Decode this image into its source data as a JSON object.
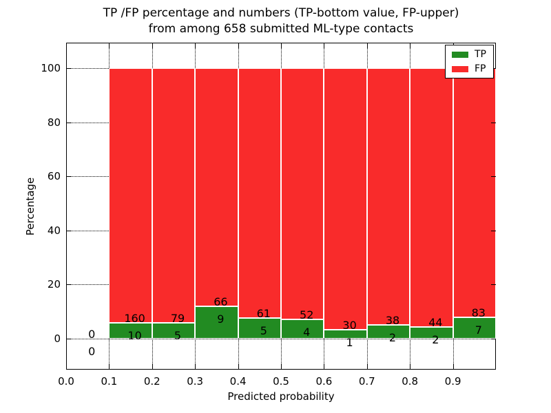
{
  "title": {
    "line1": "TP /FP percentage and numbers (TP-bottom value, FP-upper)",
    "line2": "from among 658 submitted ML-type contacts"
  },
  "axes": {
    "xlabel": "Predicted probability",
    "ylabel": "Percentage",
    "xtick_values": [
      0,
      0.1,
      0.2,
      0.3,
      0.4,
      0.5,
      0.6,
      0.7,
      0.8,
      0.9
    ],
    "xtick_labels": [
      "0.0",
      "0.1",
      "0.2",
      "0.3",
      "0.4",
      "0.5",
      "0.6",
      "0.7",
      "0.8",
      "0.9"
    ],
    "ytick_values": [
      0,
      20,
      40,
      60,
      80,
      100
    ],
    "ytick_labels": [
      "0",
      "20",
      "40",
      "60",
      "80",
      "100"
    ]
  },
  "legend": {
    "items": [
      {
        "label": "TP",
        "color": "#228b22"
      },
      {
        "label": "FP",
        "color": "#f92b2b"
      }
    ]
  },
  "colors": {
    "tp": "#228b22",
    "fp": "#f92b2b",
    "grid": "#000000",
    "background": "#ffffff"
  },
  "chart_data": {
    "type": "bar",
    "stacked": true,
    "normalization": "each probability bin stacked to 100%",
    "title": "TP /FP percentage and numbers (TP-bottom value, FP-upper) from among 658 submitted ML-type contacts",
    "xlabel": "Predicted probability",
    "ylabel": "Percentage",
    "total_contacts": 658,
    "bin_edges": [
      0.0,
      0.1,
      0.2,
      0.3,
      0.4,
      0.5,
      0.6,
      0.7,
      0.8,
      0.9,
      1.0
    ],
    "categories": [
      "0.0-0.1",
      "0.1-0.2",
      "0.2-0.3",
      "0.3-0.4",
      "0.4-0.5",
      "0.5-0.6",
      "0.6-0.7",
      "0.7-0.8",
      "0.8-0.9",
      "0.9-1.0"
    ],
    "series": [
      {
        "name": "TP",
        "color": "#228b22",
        "counts": [
          0,
          10,
          5,
          9,
          5,
          4,
          1,
          2,
          2,
          7
        ],
        "pct": [
          0,
          5.88,
          5.95,
          12.0,
          7.58,
          7.14,
          3.23,
          5.0,
          4.35,
          7.78
        ]
      },
      {
        "name": "FP",
        "color": "#f92b2b",
        "counts": [
          0,
          160,
          79,
          66,
          61,
          52,
          30,
          38,
          44,
          83
        ],
        "pct": [
          0,
          94.12,
          94.05,
          88.0,
          92.42,
          92.86,
          96.77,
          95.0,
          95.65,
          92.22
        ]
      }
    ],
    "xlim": [
      0.0,
      1.0
    ],
    "ylim": [
      -11.5,
      109.5
    ],
    "grid": true,
    "grid_style": "dotted",
    "legend_position": "upper right"
  }
}
